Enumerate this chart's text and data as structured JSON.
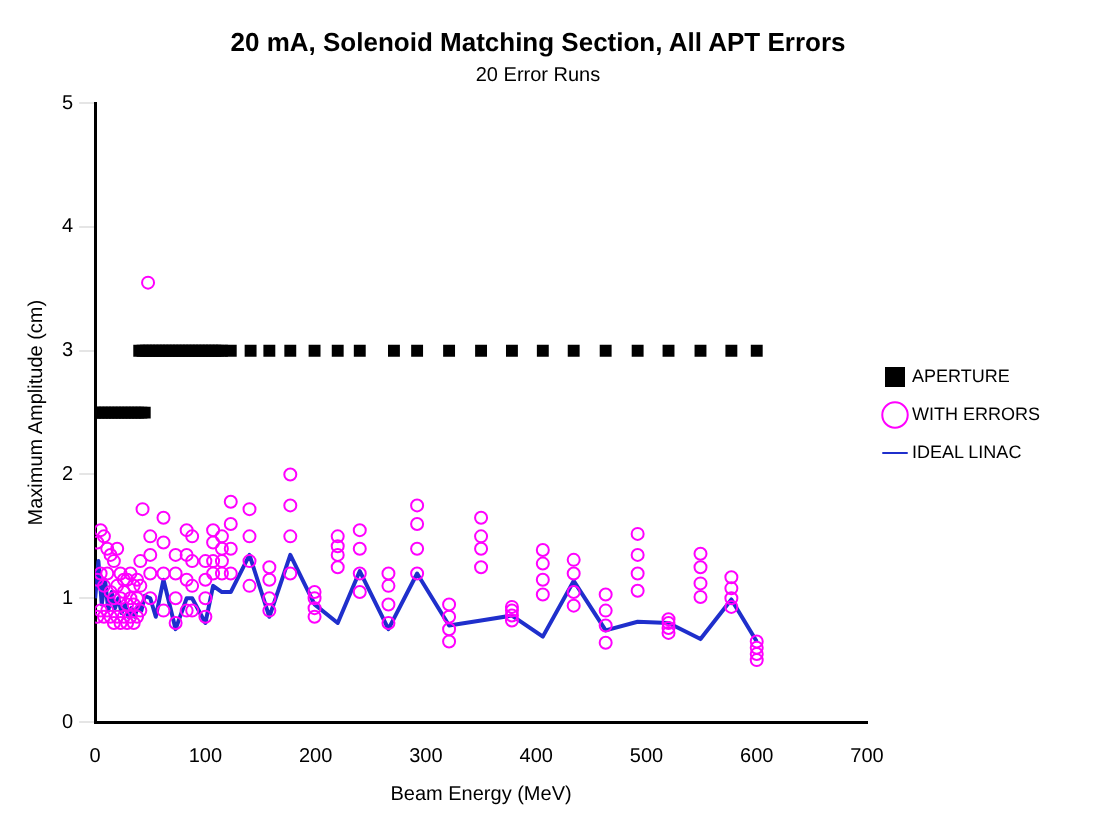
{
  "chart_data": {
    "type": "scatter",
    "title": "20 mA, Solenoid Matching Section, All APT Errors",
    "subtitle": "20 Error Runs",
    "xlabel": "Beam Energy (MeV)",
    "ylabel": "Maximum Amplitude (cm)",
    "xlim": [
      0,
      700
    ],
    "xticks": [
      0,
      100,
      200,
      300,
      400,
      500,
      600,
      700
    ],
    "ylim": [
      0,
      5
    ],
    "yticks": [
      0,
      1,
      2,
      3,
      4,
      5
    ],
    "grid": false,
    "legend": "right",
    "series": [
      {
        "name": "APERTURE",
        "type": "scatter",
        "marker": "square",
        "color": "#000000",
        "x": [
          0,
          3,
          6,
          9,
          12,
          15,
          18,
          21,
          24,
          27,
          30,
          33,
          36,
          39,
          42,
          45,
          40,
          43,
          46,
          49,
          52,
          55,
          58,
          61,
          64,
          67,
          70,
          73,
          76,
          79,
          82,
          85,
          88,
          91,
          94,
          97,
          100,
          103,
          106,
          109,
          112,
          115,
          123,
          141,
          158,
          177,
          199,
          220,
          240,
          271,
          292,
          321,
          350,
          378,
          406,
          434,
          463,
          492,
          520,
          549,
          577,
          600
        ],
        "values": [
          2.5,
          2.5,
          2.5,
          2.5,
          2.5,
          2.5,
          2.5,
          2.5,
          2.5,
          2.5,
          2.5,
          2.5,
          2.5,
          2.5,
          2.5,
          2.5,
          3,
          3,
          3,
          3,
          3,
          3,
          3,
          3,
          3,
          3,
          3,
          3,
          3,
          3,
          3,
          3,
          3,
          3,
          3,
          3,
          3,
          3,
          3,
          3,
          3,
          3,
          3,
          3,
          3,
          3,
          3,
          3,
          3,
          3,
          3,
          3,
          3,
          3,
          3,
          3,
          3,
          3,
          3,
          3,
          3,
          3
        ]
      },
      {
        "name": "WITH ERRORS",
        "type": "scatter",
        "marker": "circle",
        "color": "#ff00ff",
        "x": [
          2,
          2,
          2,
          5,
          5,
          5,
          8,
          8,
          8,
          11,
          11,
          11,
          14,
          14,
          14,
          17,
          17,
          17,
          20,
          20,
          20,
          23,
          23,
          23,
          26,
          26,
          26,
          29,
          29,
          29,
          32,
          32,
          32,
          35,
          35,
          35,
          38,
          38,
          38,
          41,
          41,
          41,
          43,
          48,
          50,
          50,
          50,
          50,
          62,
          62,
          62,
          62,
          73,
          73,
          73,
          73,
          83,
          83,
          83,
          83,
          88,
          88,
          88,
          88,
          100,
          100,
          100,
          100,
          107,
          107,
          107,
          107,
          115,
          115,
          115,
          115,
          123,
          123,
          123,
          123,
          140,
          140,
          140,
          140,
          158,
          158,
          158,
          158,
          177,
          177,
          177,
          177,
          199,
          199,
          199,
          199,
          220,
          220,
          220,
          220,
          240,
          240,
          240,
          240,
          266,
          266,
          266,
          266,
          292,
          292,
          292,
          292,
          321,
          321,
          321,
          321,
          350,
          350,
          350,
          350,
          378,
          378,
          378,
          378,
          406,
          406,
          406,
          406,
          434,
          434,
          434,
          434,
          463,
          463,
          463,
          463,
          492,
          492,
          492,
          492,
          520,
          520,
          520,
          520,
          549,
          549,
          549,
          549,
          577,
          577,
          577,
          577,
          600,
          600,
          600,
          600
        ],
        "values": [
          0.85,
          1.15,
          1.45,
          0.9,
          1.2,
          1.55,
          0.85,
          1.1,
          1.5,
          0.9,
          1.2,
          1.4,
          0.85,
          1.05,
          1.35,
          0.8,
          1.0,
          1.3,
          0.85,
          1.1,
          1.4,
          0.8,
          1.0,
          1.2,
          0.85,
          1.05,
          1.15,
          0.8,
          0.95,
          1.15,
          0.85,
          1.0,
          1.2,
          0.8,
          0.95,
          1.1,
          0.85,
          1.0,
          1.15,
          0.9,
          1.1,
          1.3,
          1.72,
          3.55,
          1.0,
          1.2,
          1.35,
          1.5,
          0.9,
          1.2,
          1.45,
          1.65,
          0.8,
          1.0,
          1.2,
          1.35,
          0.9,
          1.15,
          1.35,
          1.55,
          0.9,
          1.1,
          1.3,
          1.5,
          0.85,
          1.0,
          1.15,
          1.3,
          1.2,
          1.3,
          1.45,
          1.55,
          1.2,
          1.3,
          1.4,
          1.5,
          1.2,
          1.4,
          1.6,
          1.78,
          1.1,
          1.3,
          1.5,
          1.72,
          0.9,
          1.0,
          1.15,
          1.25,
          1.2,
          1.5,
          1.75,
          2.0,
          0.85,
          0.92,
          1.0,
          1.05,
          1.25,
          1.35,
          1.42,
          1.5,
          1.05,
          1.2,
          1.4,
          1.55,
          0.8,
          0.95,
          1.1,
          1.2,
          1.2,
          1.4,
          1.6,
          1.75,
          0.65,
          0.75,
          0.85,
          0.95,
          1.25,
          1.4,
          1.5,
          1.65,
          0.82,
          0.86,
          0.9,
          0.93,
          1.03,
          1.15,
          1.28,
          1.39,
          0.94,
          1.05,
          1.2,
          1.31,
          0.64,
          0.78,
          0.9,
          1.03,
          1.06,
          1.2,
          1.35,
          1.52,
          0.72,
          0.76,
          0.8,
          0.83,
          1.01,
          1.12,
          1.25,
          1.36,
          0.93,
          1.0,
          1.08,
          1.17,
          0.5,
          0.55,
          0.6,
          0.65
        ]
      },
      {
        "name": "IDEAL LINAC",
        "type": "line",
        "marker": "none",
        "color": "#1f2fcc",
        "x": [
          0,
          3,
          6,
          9,
          12,
          15,
          18,
          21,
          24,
          27,
          30,
          33,
          36,
          39,
          42,
          45,
          50,
          55,
          62,
          73,
          83,
          88,
          100,
          107,
          115,
          123,
          140,
          158,
          177,
          199,
          220,
          240,
          266,
          292,
          321,
          350,
          378,
          406,
          434,
          463,
          492,
          520,
          549,
          577,
          600
        ],
        "values": [
          1.0,
          1.3,
          0.95,
          1.15,
          0.9,
          1.05,
          0.92,
          1.0,
          0.88,
          0.95,
          0.85,
          0.92,
          0.85,
          0.95,
          0.9,
          1.02,
          1.0,
          0.85,
          1.15,
          0.75,
          1.0,
          1.0,
          0.8,
          1.1,
          1.05,
          1.05,
          1.35,
          0.85,
          1.35,
          0.95,
          0.8,
          1.22,
          0.75,
          1.2,
          0.78,
          0.82,
          0.86,
          0.69,
          1.14,
          0.74,
          0.81,
          0.8,
          0.67,
          0.99,
          0.65
        ]
      }
    ]
  }
}
